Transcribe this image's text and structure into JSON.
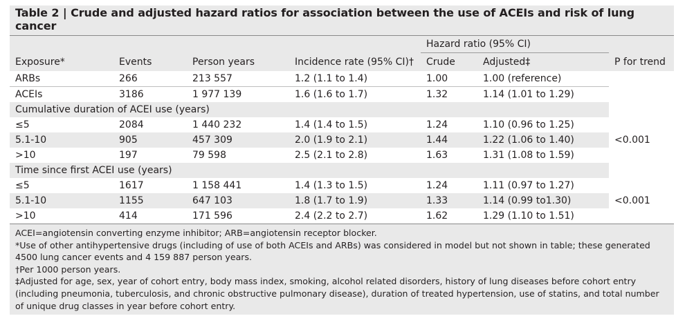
{
  "title": "Table 2 | Crude and adjusted hazard ratios for association between the use of ACEIs and risk of lung cancer",
  "header": {
    "hazard_group": "Hazard ratio (95% CI)",
    "exposure": "Exposure*",
    "events": "Events",
    "person_years": "Person years",
    "incidence": "Incidence rate (95% CI)†",
    "crude": "Crude",
    "adjusted": "Adjusted‡",
    "p_trend": "P for trend"
  },
  "top_rows": [
    {
      "exposure": "ARBs",
      "events": "266",
      "person_years": "213 557",
      "incidence": "1.2 (1.1 to 1.4)",
      "crude": "1.00",
      "adjusted": "1.00 (reference)"
    },
    {
      "exposure": "ACEIs",
      "events": "3186",
      "person_years": "1 977 139",
      "incidence": "1.6 (1.6 to 1.7)",
      "crude": "1.32",
      "adjusted": "1.14 (1.01 to 1.29)"
    }
  ],
  "sections": [
    {
      "heading": "Cumulative duration of ACEI use (years)",
      "p_trend": "<0.001",
      "rows": [
        {
          "exposure": "≤5",
          "events": "2084",
          "person_years": "1 440 232",
          "incidence": "1.4 (1.4 to 1.5)",
          "crude": "1.24",
          "adjusted": "1.10 (0.96 to 1.25)"
        },
        {
          "exposure": "5.1-10",
          "events": "905",
          "person_years": "457 309",
          "incidence": "2.0 (1.9 to 2.1)",
          "crude": "1.44",
          "adjusted": "1.22 (1.06 to 1.40)"
        },
        {
          "exposure": ">10",
          "events": "197",
          "person_years": "79 598",
          "incidence": "2.5 (2.1 to 2.8)",
          "crude": "1.63",
          "adjusted": "1.31 (1.08 to 1.59)"
        }
      ]
    },
    {
      "heading": "Time since first ACEI use (years)",
      "p_trend": "<0.001",
      "rows": [
        {
          "exposure": "≤5",
          "events": "1617",
          "person_years": "1 158 441",
          "incidence": "1.4 (1.3 to 1.5)",
          "crude": "1.24",
          "adjusted": "1.11 (0.97 to 1.27)"
        },
        {
          "exposure": "5.1-10",
          "events": "1155",
          "person_years": "647 103",
          "incidence": "1.8 (1.7 to 1.9)",
          "crude": "1.33",
          "adjusted": "1.14 (0.99 to1.30)"
        },
        {
          "exposure": ">10",
          "events": "414",
          "person_years": "171 596",
          "incidence": "2.4 (2.2 to 2.7)",
          "crude": "1.62",
          "adjusted": "1.29 (1.10 to 1.51)"
        }
      ]
    }
  ],
  "footnotes": [
    "ACEI=angiotensin converting enzyme inhibitor; ARB=angiotensin receptor blocker.",
    "*Use of other antihypertensive drugs (including of use of both ACEIs and ARBs) was considered in model but not shown in table; these generated 4500 lung cancer events and 4 159 887 person years.",
    "†Per 1000 person years.",
    "‡Adjusted for age, sex, year of cohort entry, body mass index, smoking, alcohol related disorders, history of lung diseases before cohort entry (including pneumonia, tuberculosis, and chronic obstructive pulmonary disease), duration of treated hypertension, use of statins, and total number of unique drug classes in year before cohort entry."
  ],
  "colors": {
    "shade": "#e9e9e9",
    "text": "#231f20",
    "rule": "#9a9a9a"
  }
}
